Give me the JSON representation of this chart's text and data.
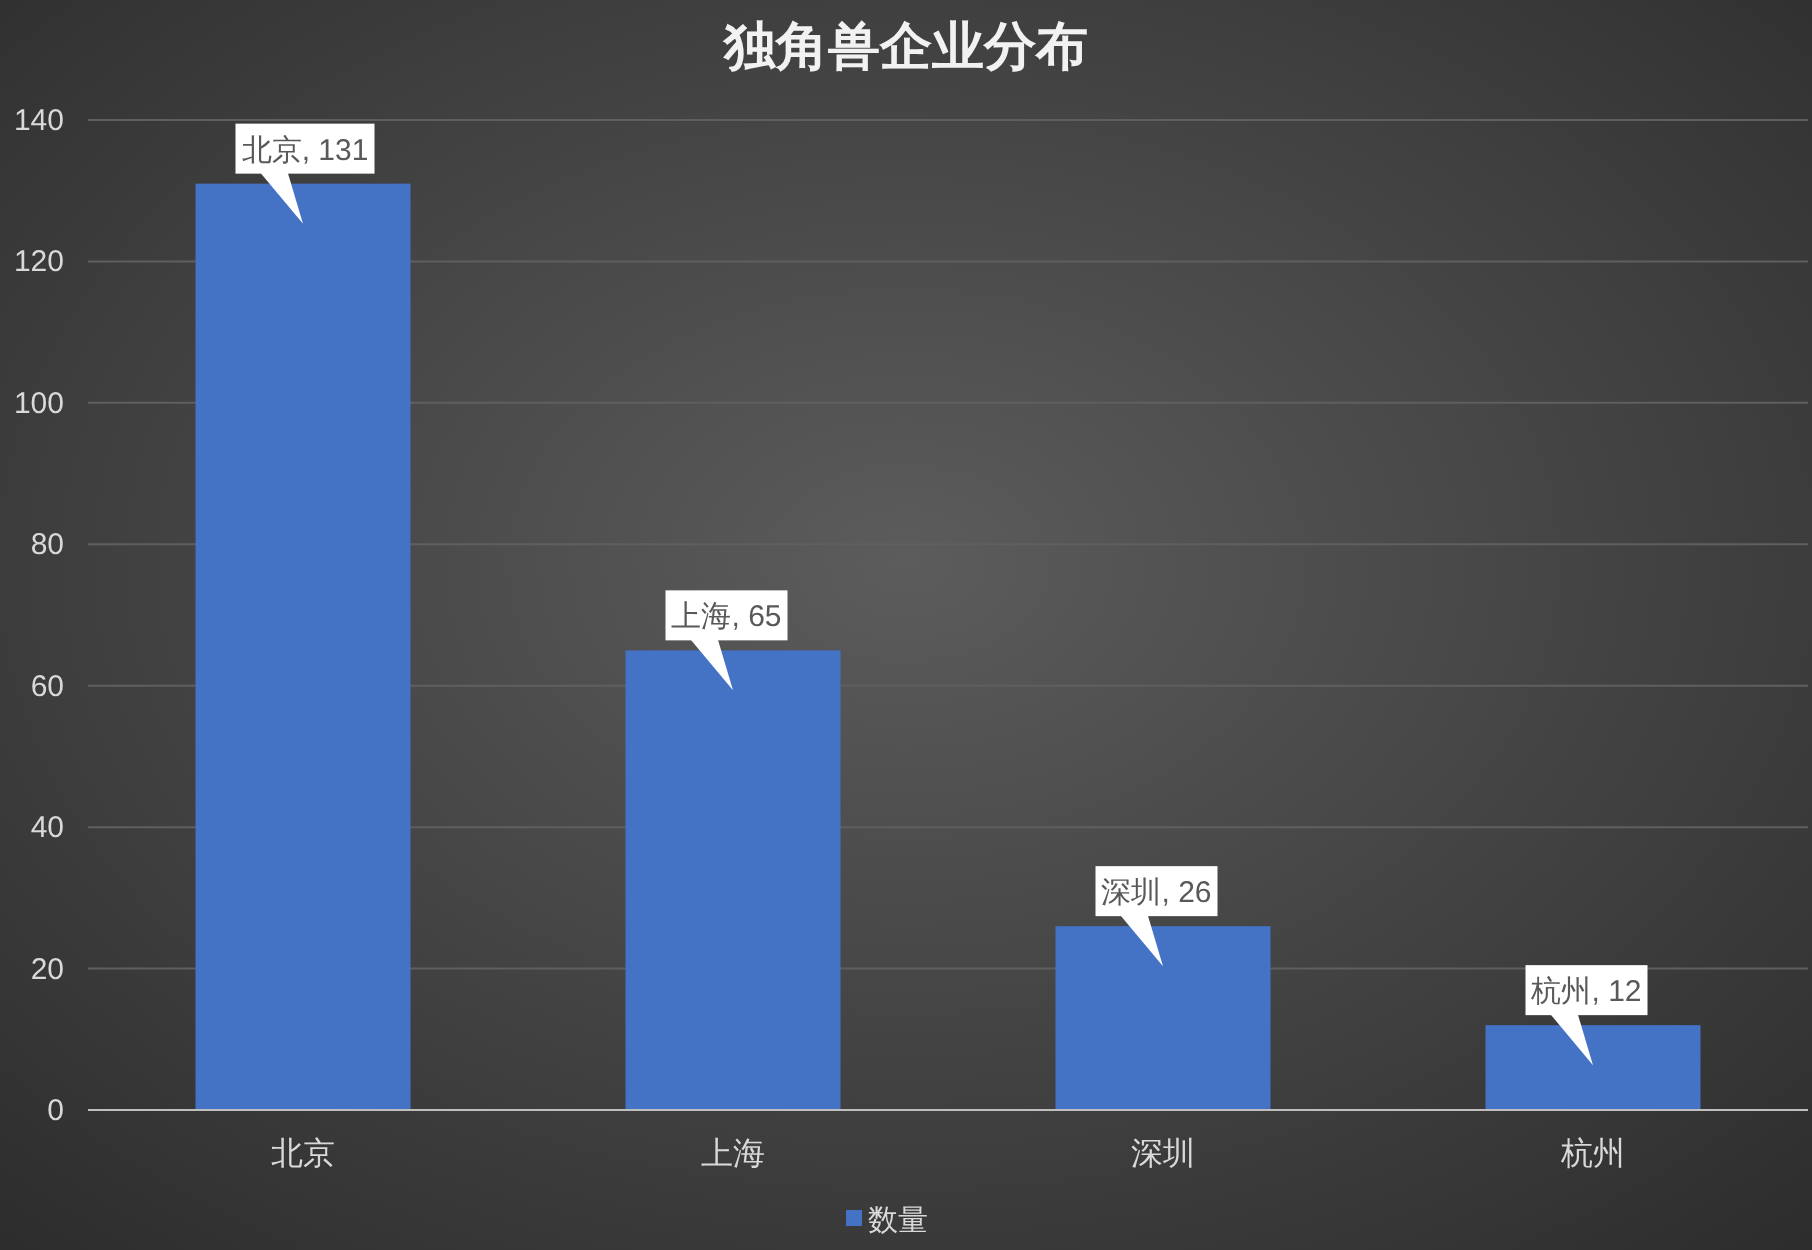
{
  "chart_data": {
    "type": "bar",
    "title": "独角兽企业分布",
    "categories": [
      "北京",
      "上海",
      "深圳",
      "杭州"
    ],
    "series": [
      {
        "name": "数量",
        "color": "#4472c4",
        "values": [
          131,
          65,
          26,
          12
        ],
        "value_labels": [
          "北京, 131",
          "上海, 65",
          "深圳, 26",
          "杭州, 12"
        ]
      }
    ],
    "ylim": [
      0,
      140
    ],
    "yticks": [
      0,
      20,
      40,
      60,
      80,
      100,
      120,
      140
    ],
    "grid": "y",
    "legend": "bottom"
  }
}
